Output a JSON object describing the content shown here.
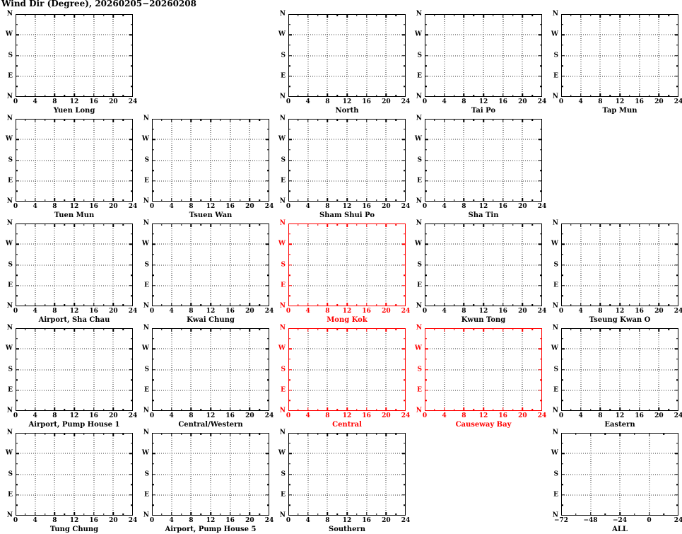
{
  "page_title": "Wind Dir (Degree), 20260205−20260208",
  "colors": {
    "default": "#000000",
    "highlight": "#ff0000",
    "grid": "#333333",
    "background": "#ffffff"
  },
  "grid_layout": {
    "rows": 5,
    "columns": 5,
    "empty_cells": [
      [
        1,
        2
      ],
      [
        2,
        5
      ],
      [
        5,
        4
      ]
    ]
  },
  "axes": {
    "y_tick_labels": [
      "N",
      "W",
      "S",
      "E",
      "N"
    ],
    "x_tick_labels_default": [
      "0",
      "4",
      "8",
      "12",
      "16",
      "20",
      "24"
    ],
    "x_tick_labels_all": [
      "−72",
      "−48",
      "−24",
      "0",
      "24"
    ]
  },
  "chart_data": [
    {
      "type": "line",
      "title": "Yuen Long",
      "row": 1,
      "col": 1,
      "highlighted": false,
      "x_range": [
        0,
        24
      ],
      "x_tick_labels": [
        "0",
        "4",
        "8",
        "12",
        "16",
        "20",
        "24"
      ],
      "y_tick_labels": [
        "N",
        "W",
        "S",
        "E",
        "N"
      ],
      "grid": true,
      "has_data": false,
      "series": []
    },
    {
      "type": "line",
      "title": "North",
      "row": 1,
      "col": 3,
      "highlighted": false,
      "x_range": [
        0,
        24
      ],
      "x_tick_labels": [
        "0",
        "4",
        "8",
        "12",
        "16",
        "20",
        "24"
      ],
      "y_tick_labels": [
        "N",
        "W",
        "S",
        "E",
        "N"
      ],
      "grid": true,
      "has_data": false,
      "series": []
    },
    {
      "type": "line",
      "title": "Tai Po",
      "row": 1,
      "col": 4,
      "highlighted": false,
      "x_range": [
        0,
        24
      ],
      "x_tick_labels": [
        "0",
        "4",
        "8",
        "12",
        "16",
        "20",
        "24"
      ],
      "y_tick_labels": [
        "N",
        "W",
        "S",
        "E",
        "N"
      ],
      "grid": true,
      "has_data": false,
      "series": []
    },
    {
      "type": "line",
      "title": "Tap Mun",
      "row": 1,
      "col": 5,
      "highlighted": false,
      "x_range": [
        0,
        24
      ],
      "x_tick_labels": [
        "0",
        "4",
        "8",
        "12",
        "16",
        "20",
        "24"
      ],
      "y_tick_labels": [
        "N",
        "W",
        "S",
        "E",
        "N"
      ],
      "grid": true,
      "has_data": false,
      "series": []
    },
    {
      "type": "line",
      "title": "Tuen Mun",
      "row": 2,
      "col": 1,
      "highlighted": false,
      "x_range": [
        0,
        24
      ],
      "x_tick_labels": [
        "0",
        "4",
        "8",
        "12",
        "16",
        "20",
        "24"
      ],
      "y_tick_labels": [
        "N",
        "W",
        "S",
        "E",
        "N"
      ],
      "grid": true,
      "has_data": false,
      "series": []
    },
    {
      "type": "line",
      "title": "Tsuen Wan",
      "row": 2,
      "col": 2,
      "highlighted": false,
      "x_range": [
        0,
        24
      ],
      "x_tick_labels": [
        "0",
        "4",
        "8",
        "12",
        "16",
        "20",
        "24"
      ],
      "y_tick_labels": [
        "N",
        "W",
        "S",
        "E",
        "N"
      ],
      "grid": true,
      "has_data": false,
      "series": []
    },
    {
      "type": "line",
      "title": "Sham Shui Po",
      "row": 2,
      "col": 3,
      "highlighted": false,
      "x_range": [
        0,
        24
      ],
      "x_tick_labels": [
        "0",
        "4",
        "8",
        "12",
        "16",
        "20",
        "24"
      ],
      "y_tick_labels": [
        "N",
        "W",
        "S",
        "E",
        "N"
      ],
      "grid": true,
      "has_data": false,
      "series": []
    },
    {
      "type": "line",
      "title": "Sha Tin",
      "row": 2,
      "col": 4,
      "highlighted": false,
      "x_range": [
        0,
        24
      ],
      "x_tick_labels": [
        "0",
        "4",
        "8",
        "12",
        "16",
        "20",
        "24"
      ],
      "y_tick_labels": [
        "N",
        "W",
        "S",
        "E",
        "N"
      ],
      "grid": true,
      "has_data": false,
      "series": []
    },
    {
      "type": "line",
      "title": "Airport, Sha Chau",
      "row": 3,
      "col": 1,
      "highlighted": false,
      "x_range": [
        0,
        24
      ],
      "x_tick_labels": [
        "0",
        "4",
        "8",
        "12",
        "16",
        "20",
        "24"
      ],
      "y_tick_labels": [
        "N",
        "W",
        "S",
        "E",
        "N"
      ],
      "grid": true,
      "has_data": false,
      "series": []
    },
    {
      "type": "line",
      "title": "Kwai Chung",
      "row": 3,
      "col": 2,
      "highlighted": false,
      "x_range": [
        0,
        24
      ],
      "x_tick_labels": [
        "0",
        "4",
        "8",
        "12",
        "16",
        "20",
        "24"
      ],
      "y_tick_labels": [
        "N",
        "W",
        "S",
        "E",
        "N"
      ],
      "grid": true,
      "has_data": false,
      "series": []
    },
    {
      "type": "line",
      "title": "Mong Kok",
      "row": 3,
      "col": 3,
      "highlighted": true,
      "x_range": [
        0,
        24
      ],
      "x_tick_labels": [
        "0",
        "4",
        "8",
        "12",
        "16",
        "20",
        "24"
      ],
      "y_tick_labels": [
        "N",
        "W",
        "S",
        "E",
        "N"
      ],
      "grid": true,
      "has_data": false,
      "series": []
    },
    {
      "type": "line",
      "title": "Kwun Tong",
      "row": 3,
      "col": 4,
      "highlighted": false,
      "x_range": [
        0,
        24
      ],
      "x_tick_labels": [
        "0",
        "4",
        "8",
        "12",
        "16",
        "20",
        "24"
      ],
      "y_tick_labels": [
        "N",
        "W",
        "S",
        "E",
        "N"
      ],
      "grid": true,
      "has_data": false,
      "series": []
    },
    {
      "type": "line",
      "title": "Tseung Kwan O",
      "row": 3,
      "col": 5,
      "highlighted": false,
      "x_range": [
        0,
        24
      ],
      "x_tick_labels": [
        "0",
        "4",
        "8",
        "12",
        "16",
        "20",
        "24"
      ],
      "y_tick_labels": [
        "N",
        "W",
        "S",
        "E",
        "N"
      ],
      "grid": true,
      "has_data": false,
      "series": []
    },
    {
      "type": "line",
      "title": "Airport, Pump House 1",
      "row": 4,
      "col": 1,
      "highlighted": false,
      "x_range": [
        0,
        24
      ],
      "x_tick_labels": [
        "0",
        "4",
        "8",
        "12",
        "16",
        "20",
        "24"
      ],
      "y_tick_labels": [
        "N",
        "W",
        "S",
        "E",
        "N"
      ],
      "grid": true,
      "has_data": false,
      "series": []
    },
    {
      "type": "line",
      "title": "Central/Western",
      "row": 4,
      "col": 2,
      "highlighted": false,
      "x_range": [
        0,
        24
      ],
      "x_tick_labels": [
        "0",
        "4",
        "8",
        "12",
        "16",
        "20",
        "24"
      ],
      "y_tick_labels": [
        "N",
        "W",
        "S",
        "E",
        "N"
      ],
      "grid": true,
      "has_data": false,
      "series": []
    },
    {
      "type": "line",
      "title": "Central",
      "row": 4,
      "col": 3,
      "highlighted": true,
      "x_range": [
        0,
        24
      ],
      "x_tick_labels": [
        "0",
        "4",
        "8",
        "12",
        "16",
        "20",
        "24"
      ],
      "y_tick_labels": [
        "N",
        "W",
        "S",
        "E",
        "N"
      ],
      "grid": true,
      "has_data": false,
      "series": []
    },
    {
      "type": "line",
      "title": "Causeway Bay",
      "row": 4,
      "col": 4,
      "highlighted": true,
      "x_range": [
        0,
        24
      ],
      "x_tick_labels": [
        "0",
        "4",
        "8",
        "12",
        "16",
        "20",
        "24"
      ],
      "y_tick_labels": [
        "N",
        "W",
        "S",
        "E",
        "N"
      ],
      "grid": true,
      "has_data": false,
      "series": []
    },
    {
      "type": "line",
      "title": "Eastern",
      "row": 4,
      "col": 5,
      "highlighted": false,
      "x_range": [
        0,
        24
      ],
      "x_tick_labels": [
        "0",
        "4",
        "8",
        "12",
        "16",
        "20",
        "24"
      ],
      "y_tick_labels": [
        "N",
        "W",
        "S",
        "E",
        "N"
      ],
      "grid": true,
      "has_data": false,
      "series": []
    },
    {
      "type": "line",
      "title": "Tung Chung",
      "row": 5,
      "col": 1,
      "highlighted": false,
      "x_range": [
        0,
        24
      ],
      "x_tick_labels": [
        "0",
        "4",
        "8",
        "12",
        "16",
        "20",
        "24"
      ],
      "y_tick_labels": [
        "N",
        "W",
        "S",
        "E",
        "N"
      ],
      "grid": true,
      "has_data": false,
      "series": []
    },
    {
      "type": "line",
      "title": "Airport, Pump House 5",
      "row": 5,
      "col": 2,
      "highlighted": false,
      "x_range": [
        0,
        24
      ],
      "x_tick_labels": [
        "0",
        "4",
        "8",
        "12",
        "16",
        "20",
        "24"
      ],
      "y_tick_labels": [
        "N",
        "W",
        "S",
        "E",
        "N"
      ],
      "grid": true,
      "has_data": false,
      "series": []
    },
    {
      "type": "line",
      "title": "Southern",
      "row": 5,
      "col": 3,
      "highlighted": false,
      "x_range": [
        0,
        24
      ],
      "x_tick_labels": [
        "0",
        "4",
        "8",
        "12",
        "16",
        "20",
        "24"
      ],
      "y_tick_labels": [
        "N",
        "W",
        "S",
        "E",
        "N"
      ],
      "grid": true,
      "has_data": false,
      "series": []
    },
    {
      "type": "line",
      "title": "ALL",
      "row": 5,
      "col": 5,
      "highlighted": false,
      "x_range": [
        -72,
        24
      ],
      "x_tick_labels": [
        "−72",
        "−48",
        "−24",
        "0",
        "24"
      ],
      "y_tick_labels": [
        "N",
        "W",
        "S",
        "E",
        "N"
      ],
      "grid": true,
      "has_data": false,
      "series": []
    }
  ]
}
